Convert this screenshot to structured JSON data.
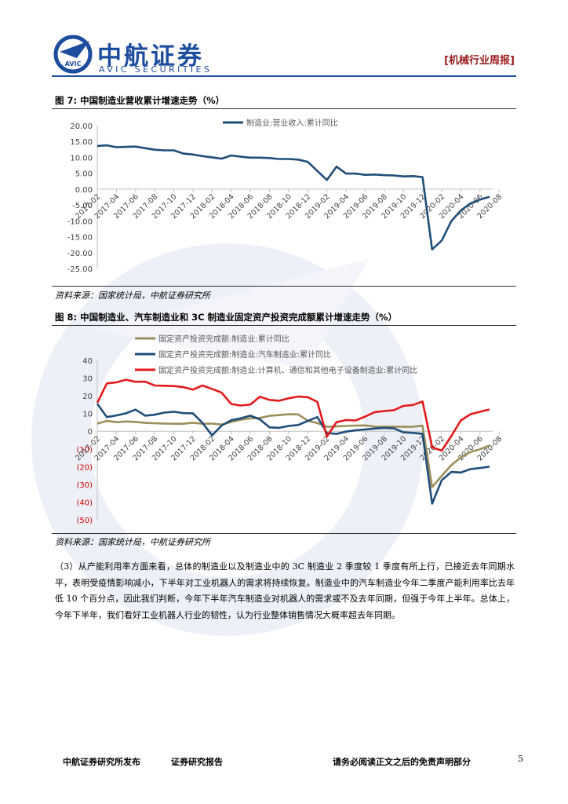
{
  "header": {
    "brand_cn": "中航证券",
    "brand_en": "AVIC SECURITIES",
    "logo_text": "AVIC",
    "report_type": "[机械行业周报]"
  },
  "colors": {
    "brand": "#1d4d9e",
    "series_blue": "#1f4e79",
    "series_olive": "#9c8f5c",
    "series_red": "#e41a1c",
    "negative_label": "#d00000"
  },
  "figure7": {
    "title": "图 7: 中国制造业营收累计增速走势（%）",
    "source": "资料来源：国家统计局，中航证券研究所",
    "chart_data": {
      "type": "line",
      "series": [
        {
          "name": "制造业:营业收入:累计同比",
          "values": [
            13.6,
            13.8,
            13.2,
            13.3,
            13.4,
            12.9,
            12.4,
            12.2,
            12.2,
            11.2,
            10.9,
            10.4,
            10.0,
            9.6,
            10.6,
            10.2,
            9.9,
            9.9,
            9.8,
            9.5,
            9.5,
            9.3,
            8.6,
            5.7,
            2.9,
            7.1,
            4.9,
            4.9,
            4.5,
            4.6,
            4.4,
            4.3,
            4.0,
            4.1,
            3.8,
            -19.0,
            -16.2,
            -10.1,
            -6.7,
            -4.5,
            -3.3,
            -2.4
          ]
        }
      ],
      "x_start": "2017-02",
      "x_tick_labels": [
        "2017-02",
        "2017-04",
        "2017-06",
        "2017-08",
        "2017-10",
        "2017-12",
        "2018-02",
        "2018-04",
        "2018-06",
        "2018-08",
        "2018-10",
        "2018-12",
        "2019-02",
        "2019-04",
        "2019-06",
        "2019-08",
        "2019-10",
        "2019-12",
        "2020-02",
        "2020-04",
        "2020-06",
        "2020-08"
      ],
      "y_tick_labels": [
        "20.00",
        "15.00",
        "10.00",
        "5.00",
        "0.00",
        "-5.00",
        "-10.00",
        "-15.00",
        "-20.00",
        "-25.00"
      ],
      "ylim": [
        -25,
        20
      ],
      "grid": false,
      "legend": "top"
    }
  },
  "figure8": {
    "title": "图 8: 中国制造业、汽车制造业和 3C 制造业固定资产投资完成额累计增速走势（%）",
    "source": "资料来源：国家统计局，中航证券研究所",
    "chart_data": {
      "type": "line",
      "series": [
        {
          "name": "固定资产投资完成额:制造业:累计同比",
          "values": [
            4.3,
            5.8,
            5.1,
            5.5,
            5.3,
            4.7,
            4.5,
            4.3,
            4.2,
            4.2,
            4.8,
            4.2,
            4.3,
            3.8,
            5.2,
            6.5,
            7.3,
            7.5,
            8.7,
            9.1,
            9.6,
            9.5,
            5.9,
            4.6,
            2.5,
            2.7,
            3.0,
            3.2,
            3.3,
            2.6,
            2.5,
            2.6,
            2.5,
            2.6,
            3.1,
            -31.5,
            -25.2,
            -19.2,
            -14.8,
            -11.7,
            -10.2,
            -8.1
          ]
        },
        {
          "name": "固定资产投资完成额:制造业:汽车制造业:累计同比",
          "values": [
            15.5,
            8.0,
            8.9,
            10.1,
            12.2,
            8.8,
            9.3,
            10.5,
            11.0,
            10.2,
            10.1,
            4.7,
            -2.4,
            3.2,
            6.2,
            7.3,
            8.8,
            6.7,
            2.2,
            1.9,
            3.0,
            3.5,
            5.8,
            8.0,
            -1.0,
            -1.5,
            -0.2,
            0.5,
            1.0,
            1.5,
            1.9,
            1.6,
            -0.6,
            -0.9,
            -1.5,
            -40.9,
            -27.7,
            -23.0,
            -23.3,
            -21.4,
            -20.8,
            -20.0
          ]
        },
        {
          "name": "固定资产投资完成额:制造业:计算机、通信和其他电子设备制造业:累计同比",
          "values": [
            16.0,
            27.0,
            27.6,
            29.1,
            27.9,
            28.0,
            25.8,
            25.7,
            25.5,
            24.9,
            23.5,
            25.8,
            23.9,
            21.8,
            15.4,
            14.5,
            15.1,
            19.5,
            17.7,
            17.2,
            18.6,
            19.6,
            19.2,
            16.6,
            -3.0,
            5.1,
            6.3,
            6.1,
            8.3,
            10.8,
            11.4,
            11.9,
            14.3,
            14.8,
            16.8,
            -9.1,
            -11.0,
            -2.8,
            6.1,
            9.6,
            11.0,
            12.3
          ]
        }
      ],
      "x_start": "2017-02",
      "x_tick_labels": [
        "2017-02",
        "2017-04",
        "2017-06",
        "2017-08",
        "2017-10",
        "2017-12",
        "2018-02",
        "2018-04",
        "2018-06",
        "2018-08",
        "2018-10",
        "2018-12",
        "2019-02",
        "2019-04",
        "2019-06",
        "2019-08",
        "2019-10",
        "2019-12",
        "2020-02",
        "2020-04",
        "2020-06",
        "2020-08"
      ],
      "y_tick_labels": [
        "40",
        "30",
        "20",
        "10",
        "0",
        "(10)",
        "(20)",
        "(30)",
        "(40)",
        "(50)"
      ],
      "ylim": [
        -50,
        40
      ],
      "grid": false,
      "legend": "top"
    }
  },
  "paragraph": "（3）从产能利用率方面来看，总体的制造业以及制造业中的 3C 制造业 2 季度较 1 季度有所上行，已接近去年同期水平，表明受疫情影响减小，下半年对工业机器人的需求将持续恢复。制造业中的汽车制造业今年二季度产能利用率比去年低 10 个百分点，因此我们判断，今年下半年汽车制造业对机器人的需求或不及去年同期，但强于今年上半年。总体上，今年下半年，我们看好工业机器人行业的韧性，认为行业整体销售情况大概率超去年同期。",
  "footer": {
    "publisher": "中航证券研究所发布",
    "report_kind": "证券研究报告",
    "disclaimer": "请务必阅读正文之后的免责声明部分",
    "page_number": "5"
  }
}
